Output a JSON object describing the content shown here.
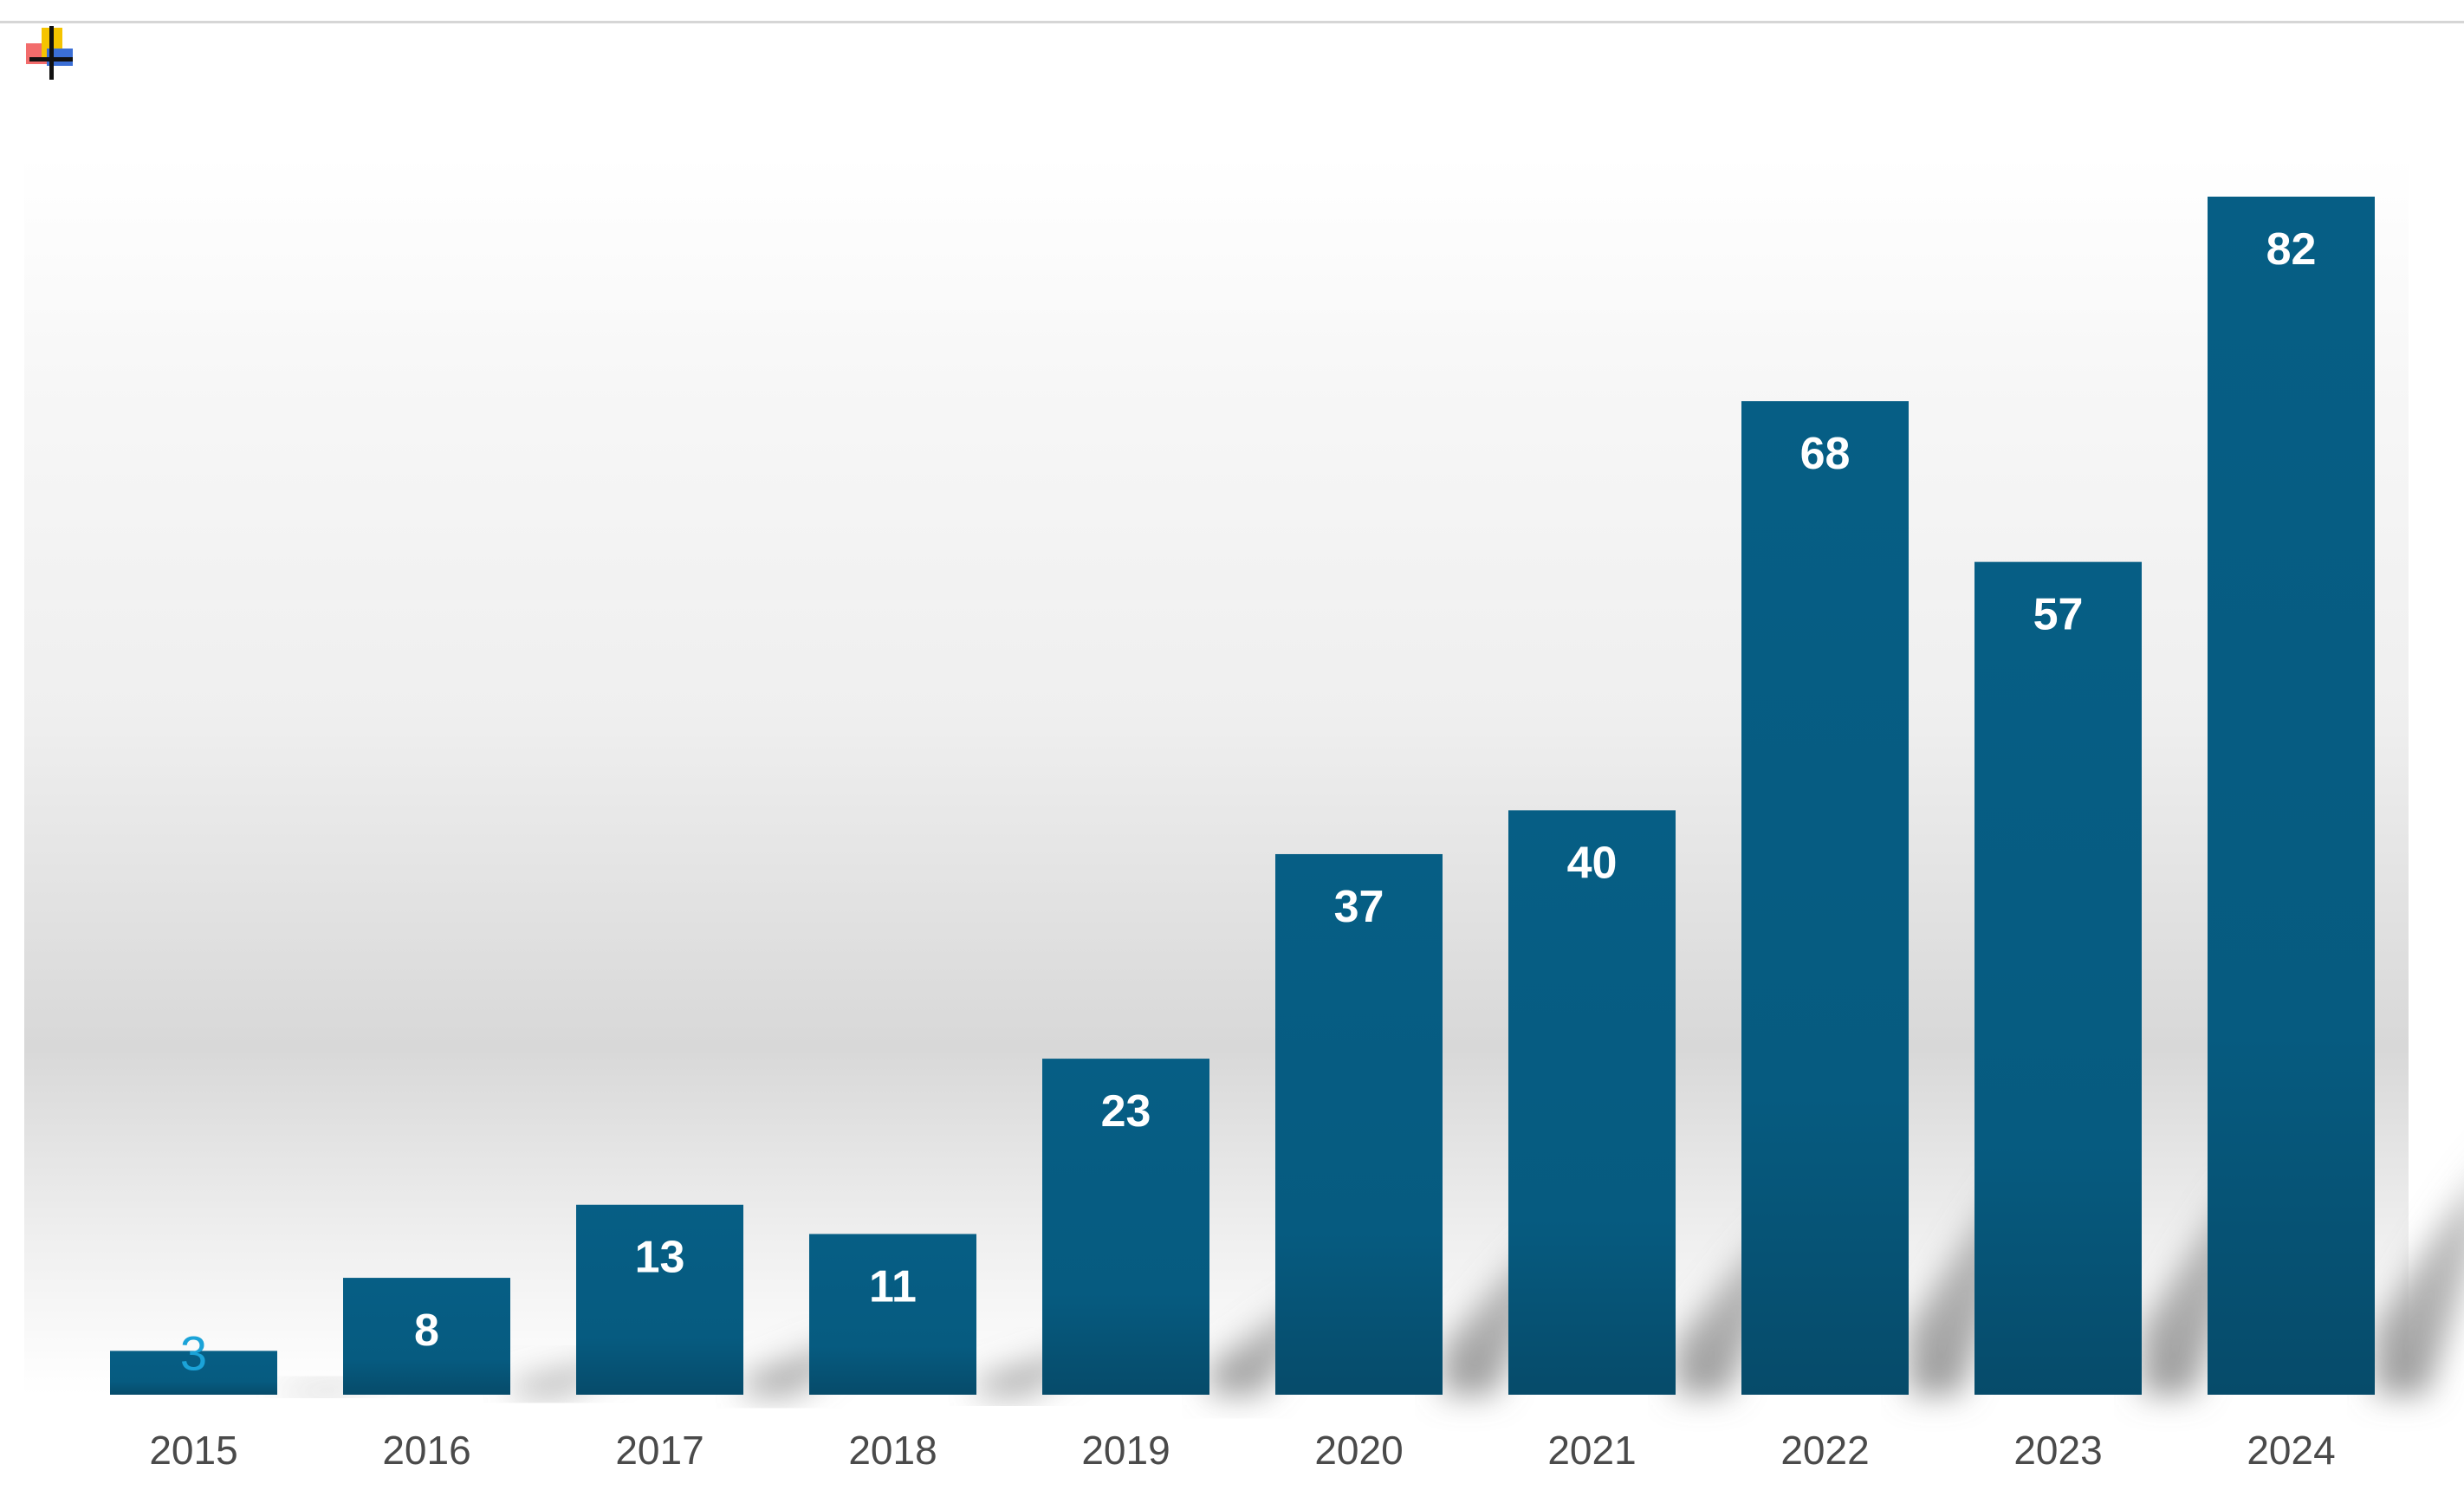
{
  "icons": {
    "app_icon": "window-layout-icon"
  },
  "colors": {
    "bar": "#065c82",
    "bar_dark": "#064e6e",
    "bar_label": "#ffffff",
    "first_label": "#1ba3d8",
    "tick_label": "#4a4a4a"
  },
  "chart_data": {
    "type": "bar",
    "categories": [
      "2015",
      "2016",
      "2017",
      "2018",
      "2019",
      "2020",
      "2021",
      "2022",
      "2023",
      "2024"
    ],
    "values": [
      3,
      8,
      13,
      11,
      23,
      37,
      40,
      68,
      57,
      82
    ],
    "data_labels": [
      "3",
      "8",
      "13",
      "11",
      "23",
      "37",
      "40",
      "68",
      "57",
      "82"
    ],
    "title": "",
    "xlabel": "",
    "ylabel": "",
    "ylim": [
      0,
      82
    ],
    "grid": false,
    "legend": "none"
  }
}
